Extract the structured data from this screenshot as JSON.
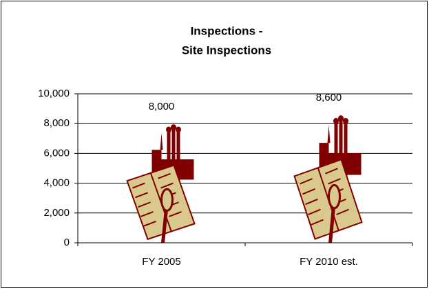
{
  "chart_data": {
    "type": "pictograph",
    "title": [
      "Inspections -",
      "Site Inspections"
    ],
    "categories": [
      "FY 2005",
      "FY 2010 est."
    ],
    "values": [
      8000,
      8600
    ],
    "value_labels": [
      "8,000",
      "8,600"
    ],
    "color": "#800000",
    "fill_color": "#d9c98c",
    "ylim": [
      0,
      10000
    ],
    "yticks": [
      0,
      {
        "value": 2000,
        "label": "2,000"
      },
      {
        "value": 4000,
        "label": "4,000"
      },
      {
        "value": 6000,
        "label": "6,000"
      },
      {
        "value": 8000,
        "label": "8,000"
      },
      {
        "value": 10000,
        "label": "10,000"
      }
    ],
    "grid": true
  }
}
